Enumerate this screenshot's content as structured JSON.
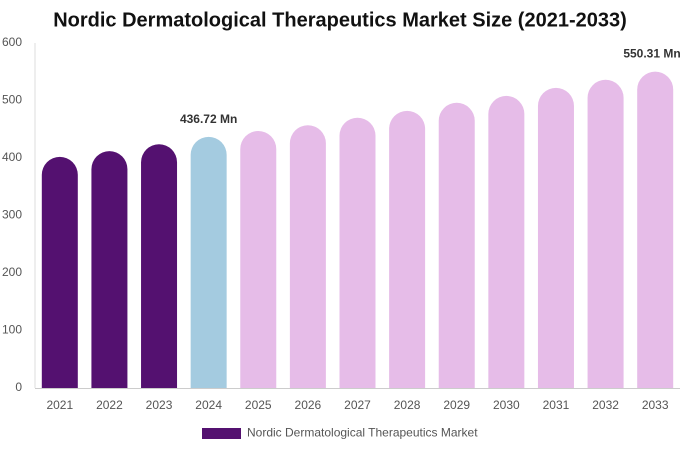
{
  "chart_data": {
    "type": "bar",
    "title": "Nordic Dermatological Therapeutics Market Size (2021-2033)",
    "categories": [
      "2021",
      "2022",
      "2023",
      "2024",
      "2025",
      "2026",
      "2027",
      "2028",
      "2029",
      "2030",
      "2031",
      "2032",
      "2033"
    ],
    "series": [
      {
        "name": "Nordic Dermatological Therapeutics Market",
        "color": "#541170",
        "values": [
          402,
          412,
          424,
          436.72,
          447,
          457,
          470,
          482,
          496,
          508,
          522,
          536,
          550.31
        ],
        "value_labels": [
          null,
          null,
          null,
          "436.72 Mn",
          null,
          null,
          null,
          null,
          null,
          null,
          null,
          null,
          "550.31 Mn"
        ],
        "colors": [
          "#541170",
          "#541170",
          "#541170",
          "#a4cbe0",
          "#e6bce8",
          "#e6bce8",
          "#e6bce8",
          "#e6bce8",
          "#e6bce8",
          "#e6bce8",
          "#e6bce8",
          "#e6bce8",
          "#e6bce8"
        ]
      }
    ],
    "ylim": [
      0,
      600
    ],
    "yticks": [
      0,
      100,
      200,
      300,
      400,
      500,
      600
    ],
    "grid": false
  }
}
